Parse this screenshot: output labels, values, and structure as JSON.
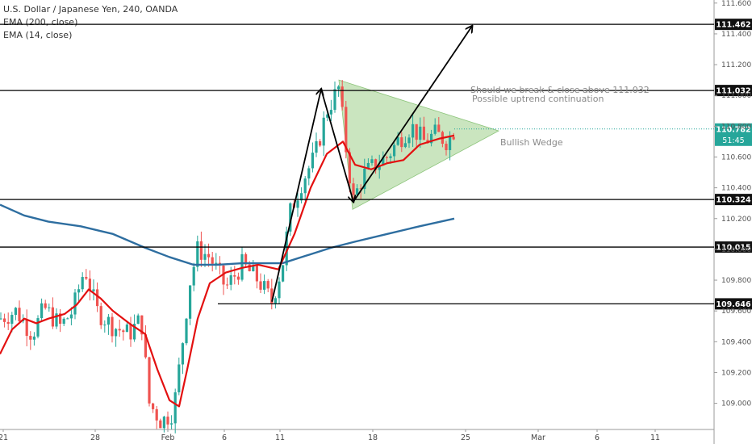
{
  "legend": {
    "symbol_line": "U.S. Dollar / Japanese Yen, 240, OANDA",
    "ema200": "EMA (200, close)",
    "ema14": "EMA (14, close)"
  },
  "colors": {
    "up": "#26a69a",
    "down": "#ef5350",
    "ema14": "#e31010",
    "ema200": "#2e6ea0",
    "wedge": "#9fd08a",
    "price_tag": "#26a69a"
  },
  "annotations": {
    "line1": "Should we break & close above 111.032",
    "line2": "Possible uptrend continuation",
    "wedge": "Bullish Wedge"
  },
  "chart_data": {
    "type": "candlestick",
    "y_axis": {
      "ylim": [
        108.83,
        111.62
      ],
      "ticks": [
        "111.600",
        "111.400",
        "111.200",
        "111.000",
        "110.800",
        "110.600",
        "110.400",
        "110.200",
        "110.000",
        "109.800",
        "109.600",
        "109.400",
        "109.200",
        "109.000"
      ]
    },
    "x_axis": {
      "ticks": [
        "21",
        "28",
        "Feb",
        "6",
        "11",
        "18",
        "25",
        "Mar",
        "6",
        "11"
      ]
    },
    "horizontal_levels": [
      "111.462",
      "111.032",
      "110.324",
      "110.015",
      "109.646"
    ],
    "last_price": "110.782",
    "countdown": "51:45",
    "ema200": [
      [
        0,
        110.29
      ],
      [
        30,
        110.22
      ],
      [
        60,
        110.18
      ],
      [
        100,
        110.15
      ],
      [
        140,
        110.1
      ],
      [
        180,
        110.01
      ],
      [
        210,
        109.95
      ],
      [
        240,
        109.9
      ],
      [
        270,
        109.9
      ],
      [
        300,
        109.91
      ],
      [
        330,
        109.91
      ],
      [
        350,
        109.91
      ],
      [
        380,
        109.96
      ],
      [
        410,
        110.01
      ],
      [
        440,
        110.05
      ],
      [
        480,
        110.1
      ],
      [
        520,
        110.15
      ],
      [
        563,
        110.2
      ]
    ],
    "ema14": [
      [
        0,
        109.32
      ],
      [
        15,
        109.48
      ],
      [
        30,
        109.55
      ],
      [
        45,
        109.52
      ],
      [
        60,
        109.55
      ],
      [
        80,
        109.58
      ],
      [
        95,
        109.64
      ],
      [
        110,
        109.74
      ],
      [
        125,
        109.68
      ],
      [
        140,
        109.6
      ],
      [
        160,
        109.52
      ],
      [
        180,
        109.45
      ],
      [
        195,
        109.22
      ],
      [
        210,
        109.02
      ],
      [
        222,
        108.98
      ],
      [
        232,
        109.22
      ],
      [
        245,
        109.55
      ],
      [
        260,
        109.78
      ],
      [
        280,
        109.85
      ],
      [
        300,
        109.88
      ],
      [
        320,
        109.9
      ],
      [
        345,
        109.87
      ],
      [
        365,
        110.1
      ],
      [
        385,
        110.4
      ],
      [
        405,
        110.62
      ],
      [
        425,
        110.7
      ],
      [
        440,
        110.55
      ],
      [
        460,
        110.52
      ],
      [
        480,
        110.56
      ],
      [
        500,
        110.58
      ],
      [
        520,
        110.68
      ],
      [
        545,
        110.72
      ],
      [
        563,
        110.74
      ]
    ],
    "wedge": [
      [
        420,
        111.1
      ],
      [
        618,
        110.77
      ],
      [
        437,
        110.26
      ]
    ],
    "arrows": [
      [
        337,
        109.66
      ],
      [
        398,
        111.04
      ],
      [
        438,
        110.31
      ],
      [
        585,
        111.45
      ]
    ],
    "candle_path": [
      [
        0,
        109.55
      ],
      [
        20,
        109.6
      ],
      [
        40,
        109.45
      ],
      [
        55,
        109.62
      ],
      [
        75,
        109.5
      ],
      [
        90,
        109.6
      ],
      [
        105,
        109.88
      ],
      [
        120,
        109.6
      ],
      [
        140,
        109.5
      ],
      [
        160,
        109.45
      ],
      [
        175,
        109.55
      ],
      [
        185,
        109.0
      ],
      [
        200,
        108.88
      ],
      [
        215,
        108.95
      ],
      [
        225,
        109.35
      ],
      [
        235,
        109.78
      ],
      [
        245,
        110.0
      ],
      [
        260,
        109.95
      ],
      [
        280,
        109.75
      ],
      [
        300,
        109.9
      ],
      [
        320,
        109.8
      ],
      [
        337,
        109.66
      ],
      [
        350,
        109.9
      ],
      [
        360,
        110.25
      ],
      [
        375,
        110.45
      ],
      [
        390,
        110.6
      ],
      [
        405,
        110.9
      ],
      [
        420,
        111.05
      ],
      [
        430,
        110.6
      ],
      [
        438,
        110.32
      ],
      [
        450,
        110.48
      ],
      [
        465,
        110.55
      ],
      [
        480,
        110.6
      ],
      [
        495,
        110.72
      ],
      [
        510,
        110.8
      ],
      [
        525,
        110.7
      ],
      [
        540,
        110.75
      ],
      [
        555,
        110.7
      ],
      [
        563,
        110.78
      ]
    ]
  }
}
